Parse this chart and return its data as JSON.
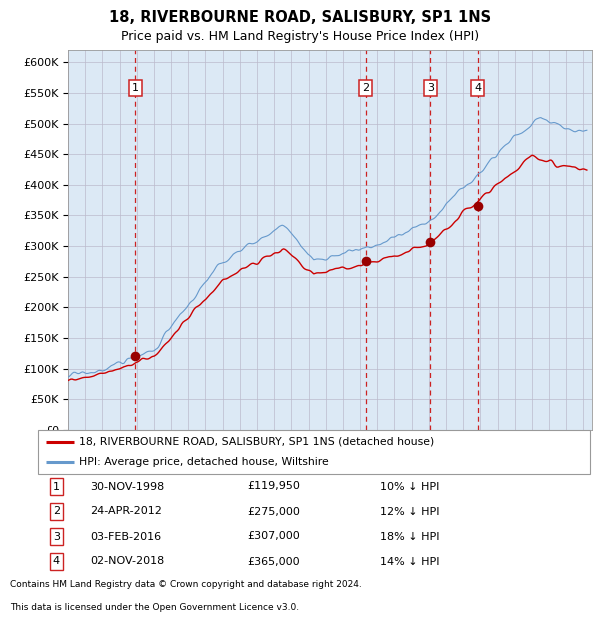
{
  "title": "18, RIVERBOURNE ROAD, SALISBURY, SP1 1NS",
  "subtitle": "Price paid vs. HM Land Registry's House Price Index (HPI)",
  "background_color": "#dce9f5",
  "red_line_color": "#cc0000",
  "blue_line_color": "#6699cc",
  "marker_color": "#990000",
  "ylim": [
    0,
    620000
  ],
  "yticks": [
    0,
    50000,
    100000,
    150000,
    200000,
    250000,
    300000,
    350000,
    400000,
    450000,
    500000,
    550000,
    600000
  ],
  "xlim_start": 1995.0,
  "xlim_end": 2025.5,
  "transactions": [
    {
      "num": 1,
      "date": "30-NOV-1998",
      "price": 119950,
      "year": 1998.92
    },
    {
      "num": 2,
      "date": "24-APR-2012",
      "price": 275000,
      "year": 2012.32
    },
    {
      "num": 3,
      "date": "03-FEB-2016",
      "price": 307000,
      "year": 2016.09
    },
    {
      "num": 4,
      "date": "02-NOV-2018",
      "price": 365000,
      "year": 2018.84
    }
  ],
  "legend_entries": [
    "18, RIVERBOURNE ROAD, SALISBURY, SP1 1NS (detached house)",
    "HPI: Average price, detached house, Wiltshire"
  ],
  "footer_lines": [
    "Contains HM Land Registry data © Crown copyright and database right 2024.",
    "This data is licensed under the Open Government Licence v3.0."
  ],
  "table_rows": [
    {
      "num": 1,
      "date": "30-NOV-1998",
      "price": "£119,950",
      "pct": "10% ↓ HPI"
    },
    {
      "num": 2,
      "date": "24-APR-2012",
      "price": "£275,000",
      "pct": "12% ↓ HPI"
    },
    {
      "num": 3,
      "date": "03-FEB-2016",
      "price": "£307,000",
      "pct": "18% ↓ HPI"
    },
    {
      "num": 4,
      "date": "02-NOV-2018",
      "price": "£365,000",
      "pct": "14% ↓ HPI"
    }
  ]
}
